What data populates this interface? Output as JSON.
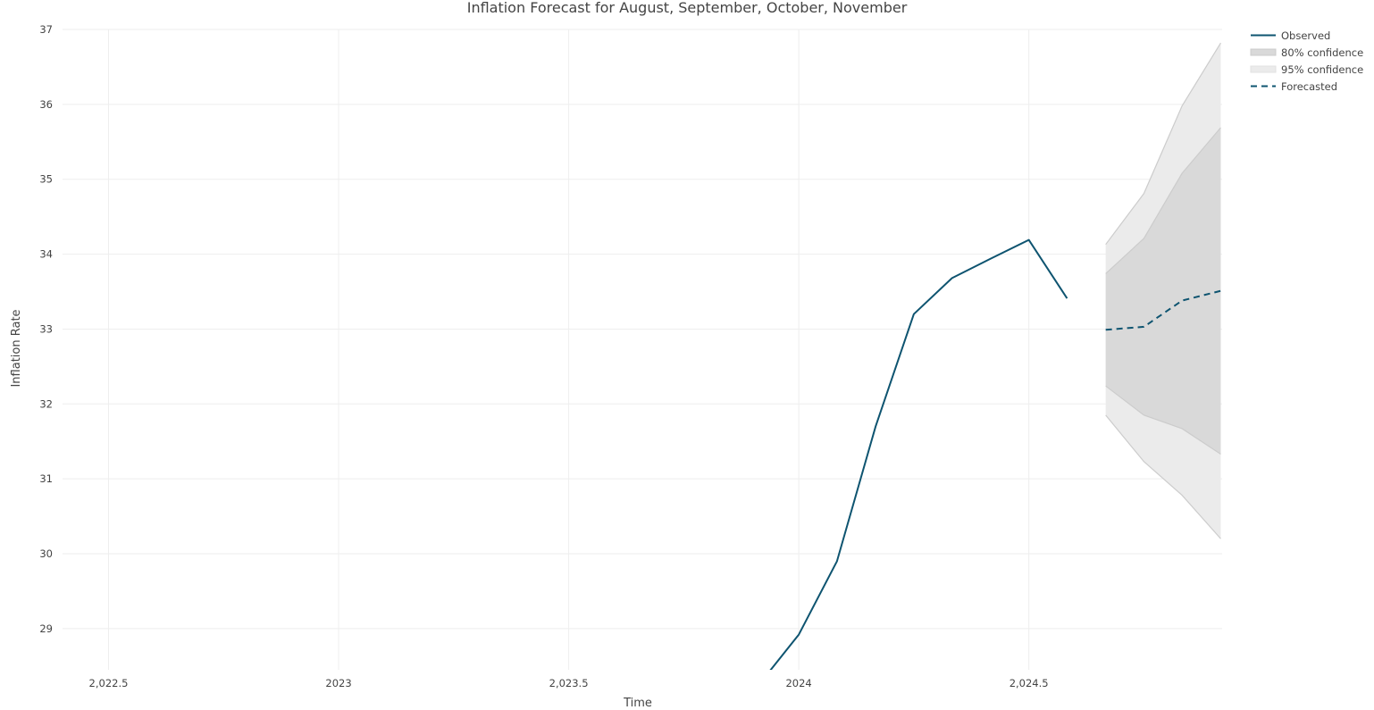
{
  "chart_data": {
    "type": "line",
    "title": "Inflation Forecast for August, September, October, November",
    "xlabel": "Time",
    "ylabel": "Inflation Rate",
    "xlim": [
      2022.4,
      2024.92
    ],
    "ylim": [
      28.45,
      37.0
    ],
    "x_ticks": [
      2022.5,
      2023,
      2023.5,
      2024,
      2024.5
    ],
    "x_tick_labels": [
      "2,022.5",
      "2023",
      "2,023.5",
      "2024",
      "2,024.5"
    ],
    "y_ticks": [
      29,
      30,
      31,
      32,
      33,
      34,
      35,
      36,
      37
    ],
    "y_tick_labels": [
      "29",
      "30",
      "31",
      "32",
      "33",
      "34",
      "35",
      "36",
      "37"
    ],
    "grid": true,
    "legend_position": "top-right",
    "colors": {
      "observed": "#0e5470",
      "forecast": "#0e5470",
      "band80": "#d9d9d9",
      "band95": "#ebebeb",
      "band_edge": "#cccccc"
    },
    "series": [
      {
        "name": "Observed",
        "style": "solid",
        "x": [
          2023.917,
          2024.0,
          2024.083,
          2024.167,
          2024.25,
          2024.333,
          2024.417,
          2024.5,
          2024.583
        ],
        "y": [
          28.28,
          28.92,
          29.9,
          31.7,
          33.2,
          33.68,
          33.94,
          34.19,
          33.41
        ]
      },
      {
        "name": "Forecasted",
        "style": "dashed",
        "x": [
          2024.667,
          2024.75,
          2024.833,
          2024.917
        ],
        "y": [
          32.99,
          33.03,
          33.38,
          33.51
        ]
      }
    ],
    "bands": [
      {
        "name": "95% confidence",
        "x": [
          2024.667,
          2024.75,
          2024.833,
          2024.917
        ],
        "lower": [
          31.85,
          31.23,
          30.78,
          30.2
        ],
        "upper": [
          34.13,
          34.81,
          35.98,
          36.82
        ]
      },
      {
        "name": "80% confidence",
        "x": [
          2024.667,
          2024.75,
          2024.833,
          2024.917
        ],
        "lower": [
          32.24,
          31.85,
          31.67,
          31.33
        ],
        "upper": [
          33.74,
          34.21,
          35.08,
          35.69
        ]
      }
    ],
    "legend": [
      "Observed",
      "80% confidence",
      "95% confidence",
      "Forecasted"
    ]
  }
}
